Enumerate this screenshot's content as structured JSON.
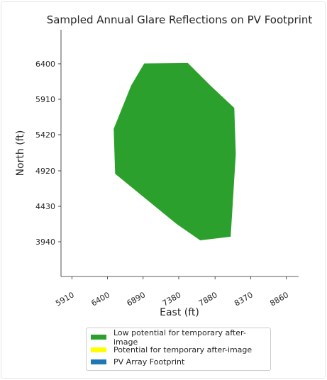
{
  "chart_data": {
    "type": "area",
    "title": "Sampled Annual Glare Reflections on PV Footprint",
    "xlabel": "East (ft)",
    "ylabel": "North (ft)",
    "xlim": [
      5760,
      9030
    ],
    "ylim": [
      3460,
      6870
    ],
    "x_ticks": [
      "5910",
      "6400",
      "6890",
      "7380",
      "7880",
      "8370",
      "8860"
    ],
    "y_ticks": [
      "3940",
      "4430",
      "4920",
      "5420",
      "5910",
      "6400"
    ],
    "series": [
      {
        "name": "Low potential for temporary after-image",
        "color": "#2ca02c",
        "polygon": [
          [
            6905,
            6405
          ],
          [
            7505,
            6410
          ],
          [
            7825,
            6090
          ],
          [
            8145,
            5790
          ],
          [
            8165,
            5150
          ],
          [
            8095,
            4010
          ],
          [
            7675,
            3960
          ],
          [
            7345,
            4190
          ],
          [
            6505,
            4880
          ],
          [
            6485,
            5500
          ],
          [
            6725,
            6100
          ]
        ]
      }
    ],
    "legend": {
      "position": "bottom-center",
      "items": [
        {
          "label": "Low potential for temporary after-image",
          "color": "#2ca02c"
        },
        {
          "label": "Potential for temporary after-image",
          "color": "#ffff00"
        },
        {
          "label": "PV Array Footprint",
          "color": "#1f77b4"
        }
      ]
    },
    "grid": false
  }
}
